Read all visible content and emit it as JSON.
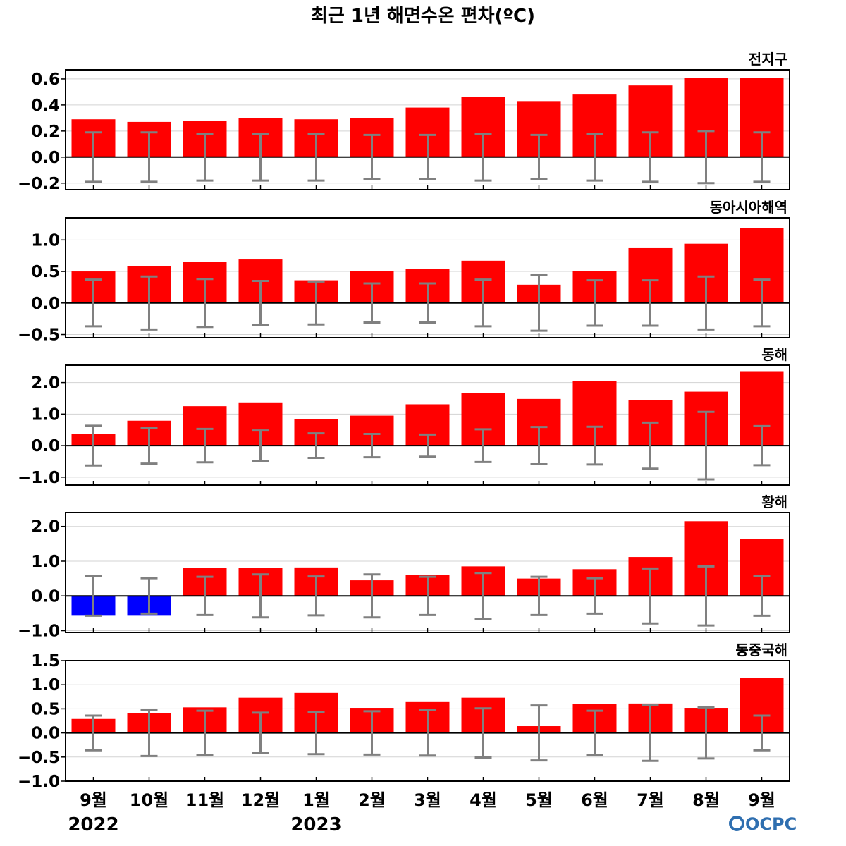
{
  "title": "최근 1년 해면수온 편차(ºC)",
  "logo_text": "OCPC",
  "colors": {
    "positive": "#ff0000",
    "negative": "#0000ff",
    "error_bar": "#808080",
    "zero_line": "#000000",
    "grid": "#d3d3d3"
  },
  "months": [
    "9월",
    "10월",
    "11월",
    "12월",
    "1월",
    "2월",
    "3월",
    "4월",
    "5월",
    "6월",
    "7월",
    "8월",
    "9월"
  ],
  "years": [
    {
      "label": "2022",
      "index": 0
    },
    {
      "label": "2023",
      "index": 4
    }
  ],
  "chart_data": [
    {
      "type": "bar",
      "title": "전지구",
      "categories": [
        "9월",
        "10월",
        "11월",
        "12월",
        "1월",
        "2월",
        "3월",
        "4월",
        "5월",
        "6월",
        "7월",
        "8월",
        "9월"
      ],
      "values": [
        0.29,
        0.27,
        0.28,
        0.3,
        0.29,
        0.3,
        0.38,
        0.46,
        0.43,
        0.48,
        0.55,
        0.61,
        0.61
      ],
      "error_bars": [
        0.19,
        0.19,
        0.18,
        0.18,
        0.18,
        0.17,
        0.17,
        0.18,
        0.17,
        0.18,
        0.19,
        0.2,
        0.19
      ],
      "ylim": [
        -0.25,
        0.67
      ],
      "yticks": [
        -0.2,
        0.0,
        0.2,
        0.4,
        0.6
      ],
      "ytick_labels": [
        "−0.2",
        "0.0",
        "0.2",
        "0.4",
        "0.6"
      ]
    },
    {
      "type": "bar",
      "title": "동아시아해역",
      "categories": [
        "9월",
        "10월",
        "11월",
        "12월",
        "1월",
        "2월",
        "3월",
        "4월",
        "5월",
        "6월",
        "7월",
        "8월",
        "9월"
      ],
      "values": [
        0.5,
        0.58,
        0.65,
        0.69,
        0.36,
        0.51,
        0.54,
        0.67,
        0.29,
        0.51,
        0.87,
        0.94,
        1.19
      ],
      "error_bars": [
        0.37,
        0.42,
        0.38,
        0.35,
        0.34,
        0.31,
        0.31,
        0.37,
        0.44,
        0.36,
        0.36,
        0.42,
        0.37
      ],
      "ylim": [
        -0.55,
        1.35
      ],
      "yticks": [
        -0.5,
        0.0,
        0.5,
        1.0
      ],
      "ytick_labels": [
        "−0.5",
        "0.0",
        "0.5",
        "1.0"
      ]
    },
    {
      "type": "bar",
      "title": "동해",
      "categories": [
        "9월",
        "10월",
        "11월",
        "12월",
        "1월",
        "2월",
        "3월",
        "4월",
        "5월",
        "6월",
        "7월",
        "8월",
        "9월"
      ],
      "values": [
        0.38,
        0.79,
        1.25,
        1.37,
        0.85,
        0.95,
        1.31,
        1.67,
        1.48,
        2.04,
        1.44,
        1.71,
        2.36
      ],
      "error_bars": [
        0.63,
        0.57,
        0.53,
        0.48,
        0.39,
        0.37,
        0.35,
        0.52,
        0.59,
        0.6,
        0.73,
        1.07,
        0.62
      ],
      "ylim": [
        -1.25,
        2.55
      ],
      "yticks": [
        -1.0,
        0.0,
        1.0,
        2.0
      ],
      "ytick_labels": [
        "−1.0",
        "0.0",
        "1.0",
        "2.0"
      ]
    },
    {
      "type": "bar",
      "title": "황해",
      "categories": [
        "9월",
        "10월",
        "11월",
        "12월",
        "1월",
        "2월",
        "3월",
        "4월",
        "5월",
        "6월",
        "7월",
        "8월",
        "9월"
      ],
      "values": [
        -0.57,
        -0.57,
        0.8,
        0.8,
        0.82,
        0.45,
        0.61,
        0.85,
        0.5,
        0.77,
        1.12,
        2.15,
        1.63
      ],
      "error_bars": [
        0.57,
        0.51,
        0.55,
        0.62,
        0.56,
        0.62,
        0.55,
        0.66,
        0.55,
        0.51,
        0.79,
        0.85,
        0.57
      ],
      "ylim": [
        -1.05,
        2.4
      ],
      "yticks": [
        -1.0,
        0.0,
        1.0,
        2.0
      ],
      "ytick_labels": [
        "−1.0",
        "0.0",
        "1.0",
        "2.0"
      ]
    },
    {
      "type": "bar",
      "title": "동중국해",
      "categories": [
        "9월",
        "10월",
        "11월",
        "12월",
        "1월",
        "2월",
        "3월",
        "4월",
        "5월",
        "6월",
        "7월",
        "8월",
        "9월"
      ],
      "values": [
        0.29,
        0.41,
        0.53,
        0.73,
        0.83,
        0.52,
        0.64,
        0.73,
        0.14,
        0.6,
        0.61,
        0.52,
        1.14
      ],
      "error_bars": [
        0.36,
        0.48,
        0.46,
        0.42,
        0.44,
        0.45,
        0.47,
        0.51,
        0.57,
        0.46,
        0.58,
        0.53,
        0.36
      ],
      "ylim": [
        -1.0,
        1.5
      ],
      "yticks": [
        -1.0,
        -0.5,
        0.0,
        0.5,
        1.0,
        1.5
      ],
      "ytick_labels": [
        "−1.0",
        "−0.5",
        "0.0",
        "0.5",
        "1.0",
        "1.5"
      ]
    }
  ]
}
